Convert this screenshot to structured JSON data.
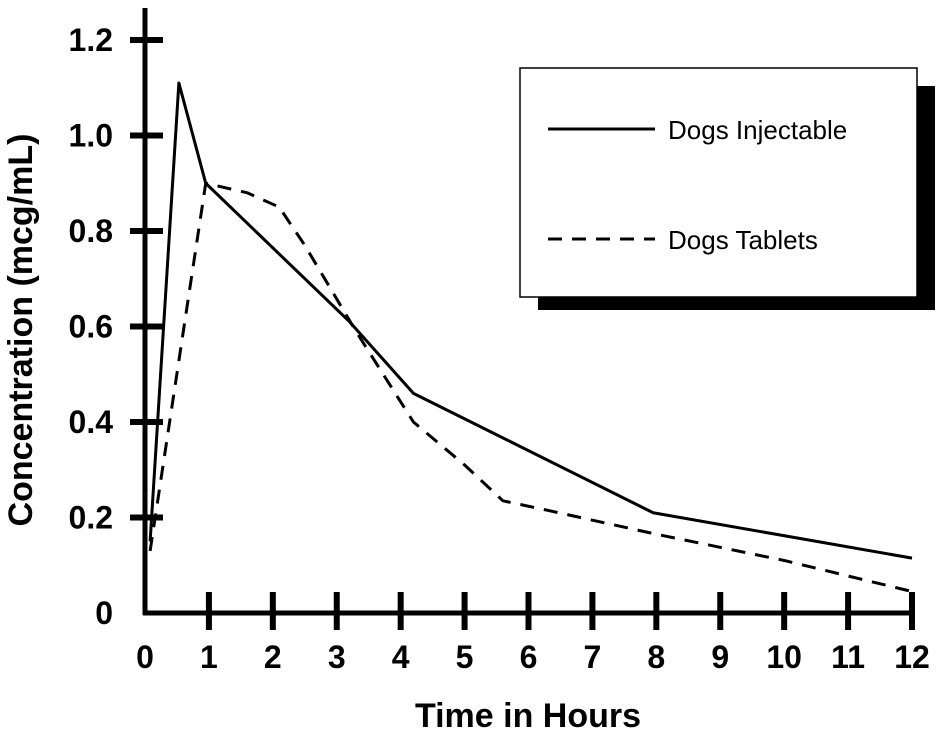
{
  "chart_data": {
    "type": "line",
    "title": "",
    "xlabel": "Time in Hours",
    "ylabel": "Concentration (mcg/mL)",
    "xlim": [
      0,
      12
    ],
    "ylim": [
      0,
      1.2
    ],
    "x_ticks": [
      0,
      1,
      2,
      3,
      4,
      5,
      6,
      7,
      8,
      9,
      10,
      11,
      12
    ],
    "x_tick_labels": [
      "0",
      "1",
      "2",
      "3",
      "4",
      "5",
      "6",
      "7",
      "8",
      "9",
      "10",
      "11",
      "12"
    ],
    "y_ticks": [
      0,
      0.2,
      0.4,
      0.6,
      0.8,
      1.0,
      1.2
    ],
    "y_tick_labels": [
      "0",
      "0.2",
      "0.4",
      "0.6",
      "0.8",
      "1.0",
      "1.2"
    ],
    "grid": false,
    "legend_position": "top-right",
    "series": [
      {
        "name": "Dogs Injectable",
        "style": "solid",
        "points": [
          [
            0.08,
            0.15
          ],
          [
            0.53,
            1.11
          ],
          [
            0.95,
            0.9
          ],
          [
            3.2,
            0.61
          ],
          [
            4.2,
            0.46
          ],
          [
            7.95,
            0.21
          ],
          [
            12,
            0.115
          ]
        ]
      },
      {
        "name": "Dogs Tablets",
        "style": "dashed",
        "points": [
          [
            0.08,
            0.13
          ],
          [
            0.95,
            0.9
          ],
          [
            1.6,
            0.88
          ],
          [
            2.1,
            0.85
          ],
          [
            2.5,
            0.77
          ],
          [
            3.3,
            0.59
          ],
          [
            4.2,
            0.4
          ],
          [
            5.0,
            0.31
          ],
          [
            5.6,
            0.235
          ],
          [
            6.3,
            0.215
          ],
          [
            8,
            0.165
          ],
          [
            10,
            0.11
          ],
          [
            12,
            0.045
          ]
        ]
      }
    ],
    "colors": {
      "line": "#000000",
      "shadow": "#000000"
    }
  }
}
